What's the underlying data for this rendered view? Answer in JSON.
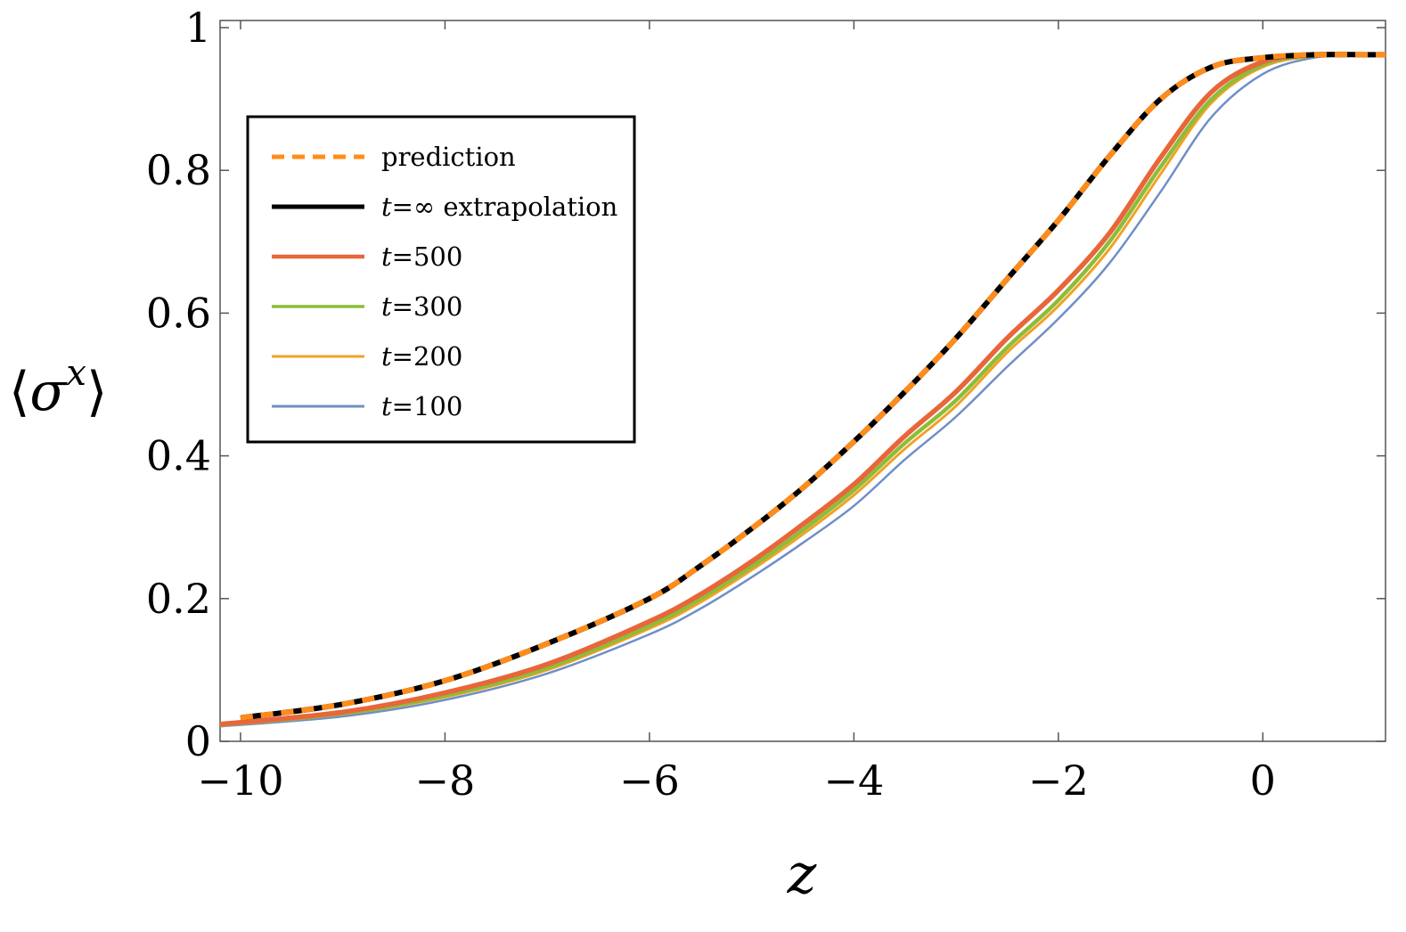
{
  "chart_data": {
    "type": "line",
    "title": "",
    "xlabel": "z",
    "ylabel": {
      "open": "⟨",
      "symbol": "σ",
      "superscript": "x",
      "close": "⟩"
    },
    "xlim": [
      -10.2,
      1.2
    ],
    "ylim": [
      0,
      1.01
    ],
    "x_ticks": [
      -10,
      -8,
      -6,
      -4,
      -2,
      0
    ],
    "x_tick_labels": [
      "−10",
      "−8",
      "−6",
      "−4",
      "−2",
      "0"
    ],
    "y_ticks": [
      0,
      0.2,
      0.4,
      0.6,
      0.8,
      1
    ],
    "y_tick_labels": [
      "0",
      "0.2",
      "0.4",
      "0.6",
      "0.8",
      "1"
    ],
    "grid": false,
    "legend_position": "top-left",
    "series": [
      {
        "name": "t=100",
        "legend_var": "t",
        "legend_rest": "=100",
        "color": "#6f8fc5",
        "style": "solid",
        "x": [
          -10.2,
          -9,
          -8,
          -7,
          -6,
          -5.5,
          -5,
          -4.5,
          -4,
          -3.5,
          -3,
          -2.5,
          -2,
          -1.5,
          -1,
          -0.5,
          0,
          0.5,
          1,
          1.2
        ],
        "y": [
          0.021,
          0.035,
          0.058,
          0.095,
          0.15,
          0.186,
          0.23,
          0.278,
          0.33,
          0.395,
          0.455,
          0.525,
          0.592,
          0.67,
          0.77,
          0.875,
          0.935,
          0.958,
          0.962,
          0.962
        ]
      },
      {
        "name": "t=200",
        "legend_var": "t",
        "legend_rest": "=200",
        "color": "#f0a224",
        "style": "solid",
        "x": [
          -10.2,
          -9,
          -8,
          -7,
          -6,
          -5.5,
          -5,
          -4.5,
          -4,
          -3.5,
          -3,
          -2.5,
          -2,
          -1.5,
          -1,
          -0.5,
          0,
          0.5,
          1,
          1.2
        ],
        "y": [
          0.022,
          0.038,
          0.062,
          0.1,
          0.158,
          0.195,
          0.24,
          0.29,
          0.345,
          0.41,
          0.47,
          0.545,
          0.61,
          0.69,
          0.795,
          0.895,
          0.945,
          0.96,
          0.962,
          0.962
        ]
      },
      {
        "name": "t=300",
        "legend_var": "t",
        "legend_rest": "=300",
        "color": "#8cbd3a",
        "style": "solid",
        "x": [
          -10.2,
          -9,
          -8,
          -7,
          -6,
          -5.5,
          -5,
          -4.5,
          -4,
          -3.5,
          -3,
          -2.5,
          -2,
          -1.5,
          -1,
          -0.5,
          0,
          0.5,
          1,
          1.2
        ],
        "y": [
          0.023,
          0.039,
          0.064,
          0.103,
          0.162,
          0.2,
          0.245,
          0.296,
          0.352,
          0.418,
          0.478,
          0.552,
          0.618,
          0.7,
          0.805,
          0.9,
          0.948,
          0.961,
          0.962,
          0.962
        ]
      },
      {
        "name": "t=500",
        "legend_var": "t",
        "legend_rest": "=500",
        "color": "#e8663a",
        "style": "solid",
        "x": [
          -10.2,
          -9,
          -8,
          -7,
          -6,
          -5.5,
          -5,
          -4.5,
          -4,
          -3.5,
          -3,
          -2.5,
          -2,
          -1.5,
          -1,
          -0.5,
          0,
          0.5,
          1,
          1.2
        ],
        "y": [
          0.024,
          0.041,
          0.068,
          0.108,
          0.168,
          0.206,
          0.252,
          0.304,
          0.36,
          0.428,
          0.49,
          0.565,
          0.632,
          0.712,
          0.818,
          0.91,
          0.952,
          0.962,
          0.962,
          0.962
        ]
      },
      {
        "name": "t=∞ extrapolation",
        "legend_var": "t",
        "legend_rest": "=∞ extrapolation",
        "color": "#000000",
        "style": "solid",
        "x": [
          -10,
          -9,
          -8,
          -7,
          -6,
          -5.5,
          -5,
          -4.5,
          -4,
          -3.5,
          -3,
          -2.5,
          -2,
          -1.5,
          -1,
          -0.5,
          0,
          0.5,
          1,
          1.2
        ],
        "y": [
          0.033,
          0.052,
          0.085,
          0.137,
          0.2,
          0.246,
          0.298,
          0.355,
          0.42,
          0.49,
          0.565,
          0.648,
          0.73,
          0.82,
          0.9,
          0.945,
          0.958,
          0.962,
          0.962,
          0.962
        ]
      },
      {
        "name": "prediction",
        "legend_var": "",
        "legend_rest": "prediction",
        "color": "#ff8c1a",
        "style": "dashed",
        "x": [
          -10,
          -9,
          -8,
          -7,
          -6,
          -5.5,
          -5,
          -4.5,
          -4,
          -3.5,
          -3,
          -2.5,
          -2,
          -1.5,
          -1,
          -0.5,
          0,
          0.5,
          1,
          1.2
        ],
        "y": [
          0.033,
          0.052,
          0.085,
          0.137,
          0.2,
          0.246,
          0.298,
          0.355,
          0.42,
          0.49,
          0.565,
          0.648,
          0.73,
          0.82,
          0.9,
          0.945,
          0.958,
          0.962,
          0.962,
          0.962
        ]
      }
    ],
    "legend_order": [
      "prediction",
      "t=∞ extrapolation",
      "t=500",
      "t=300",
      "t=200",
      "t=100"
    ]
  }
}
